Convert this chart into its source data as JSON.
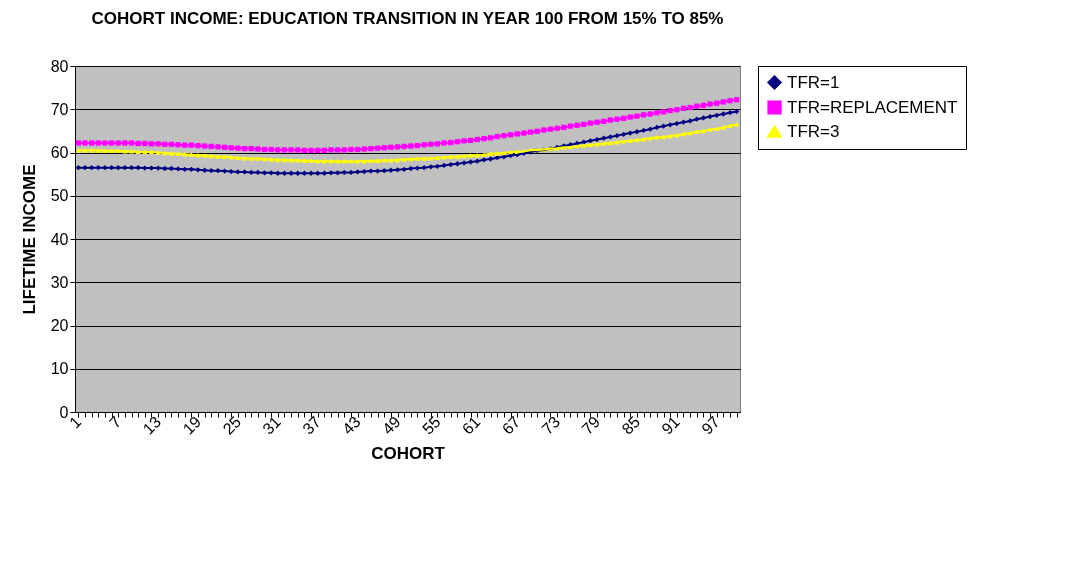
{
  "chart_data": {
    "type": "line",
    "title": "COHORT INCOME: EDUCATION TRANSITION IN YEAR 100 FROM 15% TO 85%",
    "xlabel": "COHORT",
    "ylabel": "LIFETIME INCOME",
    "categories": [
      "1",
      null,
      null,
      null,
      null,
      null,
      "7",
      null,
      null,
      null,
      null,
      null,
      "13",
      null,
      null,
      null,
      null,
      null,
      "19",
      null,
      null,
      null,
      null,
      null,
      "25",
      null,
      null,
      null,
      null,
      null,
      "31",
      null,
      null,
      null,
      null,
      null,
      "37",
      null,
      null,
      null,
      null,
      null,
      "43",
      null,
      null,
      null,
      null,
      null,
      "49",
      null,
      null,
      null,
      null,
      null,
      "55",
      null,
      null,
      null,
      null,
      null,
      "61",
      null,
      null,
      null,
      null,
      null,
      "67",
      null,
      null,
      null,
      null,
      null,
      "73",
      null,
      null,
      null,
      null,
      null,
      "79",
      null,
      null,
      null,
      null,
      null,
      "85",
      null,
      null,
      null,
      null,
      null,
      "91",
      null,
      null,
      null,
      null,
      null,
      "97",
      null,
      null,
      null
    ],
    "series": [
      {
        "name": "TFR=1",
        "color": "#000080",
        "marker": "diamond",
        "values": [
          56.5,
          56.5,
          56.5,
          56.5,
          56.5,
          56.5,
          56.5,
          56.5,
          56.5,
          56.5,
          56.4,
          56.4,
          56.4,
          56.3,
          56.3,
          56.2,
          56.1,
          56.1,
          56.0,
          55.9,
          55.8,
          55.8,
          55.7,
          55.6,
          55.5,
          55.5,
          55.4,
          55.4,
          55.3,
          55.3,
          55.2,
          55.2,
          55.2,
          55.2,
          55.2,
          55.2,
          55.2,
          55.2,
          55.3,
          55.3,
          55.4,
          55.4,
          55.5,
          55.6,
          55.7,
          55.7,
          55.8,
          55.9,
          56.0,
          56.1,
          56.3,
          56.4,
          56.5,
          56.7,
          56.8,
          57.0,
          57.2,
          57.4,
          57.6,
          57.8,
          58.0,
          58.3,
          58.5,
          58.8,
          59.0,
          59.3,
          59.5,
          59.8,
          60.1,
          60.4,
          60.6,
          60.9,
          61.2,
          61.5,
          61.8,
          62.1,
          62.4,
          62.7,
          63.0,
          63.3,
          63.6,
          63.9,
          64.2,
          64.5,
          64.8,
          65.1,
          65.4,
          65.8,
          66.1,
          66.4,
          66.7,
          67.0,
          67.3,
          67.7,
          68.0,
          68.3,
          68.6,
          68.9,
          69.2,
          69.5
        ]
      },
      {
        "name": "TFR=REPLACEMENT",
        "color": "#ff00ff",
        "marker": "square",
        "values": [
          62.2,
          62.2,
          62.2,
          62.2,
          62.2,
          62.2,
          62.2,
          62.2,
          62.2,
          62.1,
          62.1,
          62.0,
          62.0,
          61.9,
          61.9,
          61.8,
          61.7,
          61.7,
          61.6,
          61.5,
          61.4,
          61.3,
          61.2,
          61.1,
          61.0,
          60.9,
          60.9,
          60.8,
          60.7,
          60.7,
          60.6,
          60.6,
          60.6,
          60.6,
          60.5,
          60.5,
          60.5,
          60.5,
          60.6,
          60.6,
          60.6,
          60.7,
          60.7,
          60.8,
          60.9,
          61.0,
          61.1,
          61.2,
          61.3,
          61.4,
          61.5,
          61.6,
          61.8,
          61.9,
          62.0,
          62.2,
          62.3,
          62.5,
          62.7,
          62.8,
          63.0,
          63.2,
          63.4,
          63.7,
          63.9,
          64.1,
          64.3,
          64.5,
          64.7,
          64.9,
          65.2,
          65.4,
          65.6,
          65.8,
          66.1,
          66.3,
          66.5,
          66.8,
          67.0,
          67.2,
          67.5,
          67.7,
          67.9,
          68.2,
          68.4,
          68.7,
          68.9,
          69.2,
          69.4,
          69.7,
          69.9,
          70.2,
          70.4,
          70.7,
          70.9,
          71.2,
          71.4,
          71.7,
          72.0,
          72.2
        ]
      },
      {
        "name": "TFR=3",
        "color": "#ffff00",
        "marker": "triangle",
        "values": [
          60.5,
          60.5,
          60.5,
          60.5,
          60.4,
          60.4,
          60.4,
          60.3,
          60.3,
          60.2,
          60.1,
          60.1,
          60.0,
          59.9,
          59.8,
          59.7,
          59.6,
          59.5,
          59.4,
          59.3,
          59.2,
          59.1,
          59.0,
          58.9,
          58.8,
          58.7,
          58.6,
          58.6,
          58.5,
          58.4,
          58.3,
          58.3,
          58.2,
          58.2,
          58.1,
          58.1,
          58.0,
          58.0,
          58.0,
          58.0,
          58.0,
          58.0,
          58.0,
          58.0,
          58.1,
          58.1,
          58.2,
          58.2,
          58.3,
          58.4,
          58.5,
          58.6,
          58.6,
          58.7,
          58.8,
          58.9,
          59.0,
          59.1,
          59.2,
          59.3,
          59.4,
          59.5,
          59.7,
          59.8,
          59.9,
          60.1,
          60.2,
          60.3,
          60.5,
          60.6,
          60.7,
          60.9,
          61.0,
          61.2,
          61.3,
          61.5,
          61.6,
          61.8,
          61.9,
          62.1,
          62.2,
          62.4,
          62.6,
          62.7,
          62.9,
          63.1,
          63.3,
          63.5,
          63.6,
          63.8,
          64.0,
          64.3,
          64.5,
          64.8,
          65.0,
          65.3,
          65.5,
          65.8,
          66.2,
          66.5
        ]
      }
    ],
    "ylim": [
      0,
      80
    ],
    "yticks": [
      0,
      10,
      20,
      30,
      40,
      50,
      60,
      70,
      80
    ],
    "grid": "y",
    "legend": "right"
  }
}
